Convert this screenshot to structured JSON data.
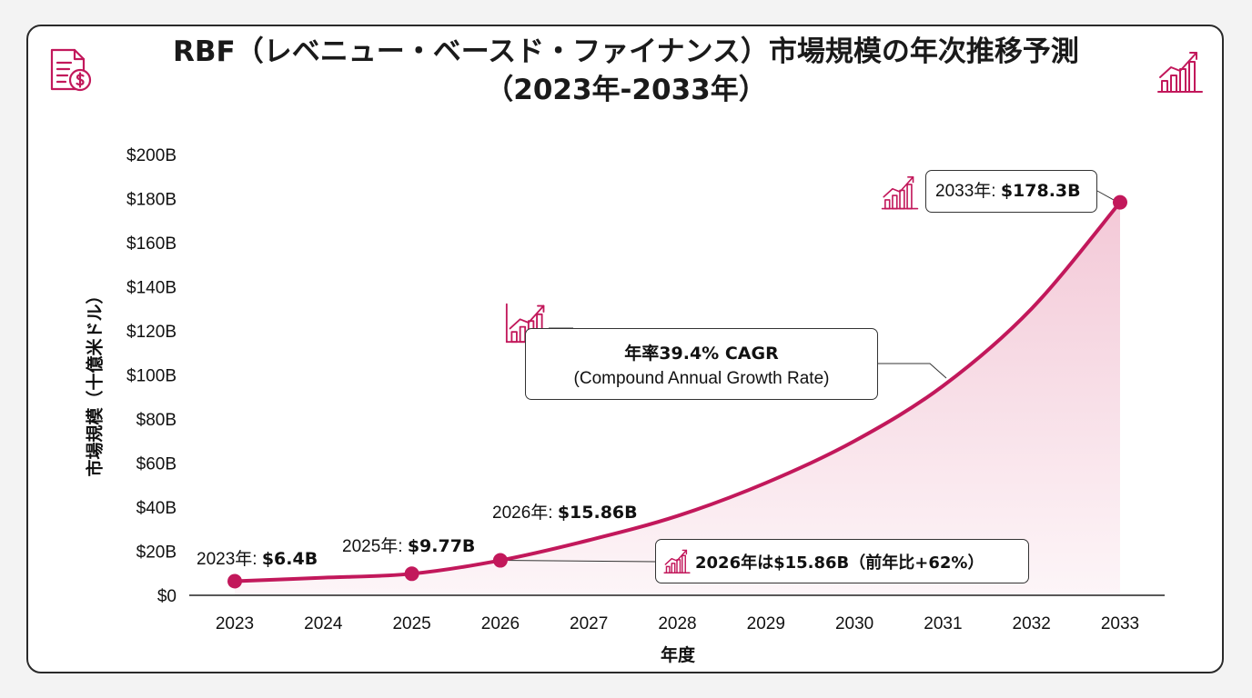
{
  "title_line1": "RBF（レベニュー・ベースド・ファイナンス）市場規模の年次推移予測",
  "title_line2": "（2023年-2033年）",
  "colors": {
    "accent": "#c2185b",
    "fill": "#f1bfd0",
    "border": "#2a2a2a"
  },
  "icons": {
    "title_left": "invoice-dollar-icon",
    "title_right": "growth-chart-icon",
    "callout": "growth-chart-icon"
  },
  "chart_data": {
    "type": "area",
    "title": "RBF（レベニュー・ベースド・ファイナンス）市場規模の年次推移予測（2023年-2033年）",
    "xlabel": "年度",
    "ylabel": "市場規模（十億米ドル）",
    "categories": [
      "2023",
      "2024",
      "2025",
      "2026",
      "2027",
      "2028",
      "2029",
      "2030",
      "2031",
      "2032",
      "2033"
    ],
    "yticks": [
      "$0",
      "$20B",
      "$40B",
      "$60B",
      "$80B",
      "$100B",
      "$120B",
      "$140B",
      "$160B",
      "$180B",
      "$200B"
    ],
    "ylim": [
      0,
      200
    ],
    "grid": false,
    "series": [
      {
        "x": [
          2023,
          2024,
          2025,
          2026,
          2027,
          2028,
          2029,
          2030,
          2031,
          2032,
          2033
        ],
        "values": [
          6.4,
          8,
          9.77,
          15.86,
          25,
          36,
          51,
          70,
          95,
          130,
          178.3
        ]
      }
    ],
    "markers": [
      {
        "x": 2023,
        "y": 6.4
      },
      {
        "x": 2025,
        "y": 9.77
      },
      {
        "x": 2026,
        "y": 15.86
      },
      {
        "x": 2033,
        "y": 178.3
      }
    ],
    "annotations": {
      "p2023": {
        "prefix": "2023年: ",
        "value": "$6.4B"
      },
      "p2025": {
        "prefix": "2025年: ",
        "value": "$9.77B"
      },
      "p2026": {
        "prefix": "2026年: ",
        "value": "$15.86B"
      },
      "p2033": {
        "prefix": "2033年: ",
        "value": "$178.3B"
      },
      "cagr_line1": "年率39.4% CAGR",
      "cagr_line2": "(Compound Annual Growth Rate)",
      "yoy": "2026年は$15.86B（前年比+62%）"
    }
  }
}
